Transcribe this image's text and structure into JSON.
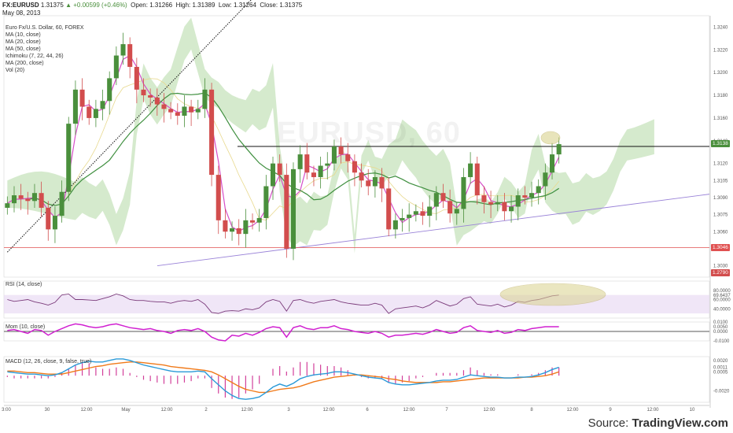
{
  "header": {
    "line1_symbol": "FX:EURUSD",
    "line1_price": "1.31375",
    "line1_change": "+0.00599 (+0.46%)",
    "open_label": "Open:",
    "open": "1.31266",
    "high_label": "High:",
    "high": "1.31389",
    "low_label": "Low:",
    "low": "1.31264",
    "close_label": "Close:",
    "close": "1.31375",
    "date": "May 08, 2013"
  },
  "indicators": [
    "Euro Fx/U.S. Dollar, 60, FOREX",
    "MA (10, close)",
    "MA (20, close)",
    "MA (50, close)",
    "Ichimoku (7, 22, 44, 26)",
    "MA (200, close)",
    "Vol (20)"
  ],
  "watermark": "EURUSD, 60",
  "source": {
    "prefix": "Source: ",
    "brand": "TradingView.com"
  },
  "colors": {
    "candle_up": "#4a8f3c",
    "candle_down": "#d24d4d",
    "ma10": "#d64fc8",
    "ma20": "#e8d98e",
    "ma50": "#3f8f3f",
    "ma200": "#222222",
    "cloud": "#c7e3bc",
    "trend": "#9a83d8",
    "resistance": "#111111",
    "support": "#e05050",
    "rsi_band": "#eadcf4",
    "rsi_line": "#7a3a7a",
    "mom_line": "#d020d0",
    "macd_line": "#2a9ad8",
    "signal_line": "#f07a1a",
    "hist": "#d23f9a"
  },
  "chart_data": {
    "type": "candlestick",
    "symbol": "FX:EURUSD",
    "timeframe": "60",
    "price_axis": {
      "ylim": [
        1.302,
        1.325
      ],
      "ticks": [
        "1.3240",
        "1.3220",
        "1.3200",
        "1.3180",
        "1.3160",
        "1.3140",
        "1.3120",
        "1.3105",
        "1.3090",
        "1.3075",
        "1.3060",
        "1.3046",
        "1.3030"
      ]
    },
    "price_labels": [
      {
        "text": "1.3138",
        "role": "last"
      },
      {
        "text": "1.3046",
        "role": "support"
      },
      {
        "text": "1.2790",
        "role": "ma200"
      }
    ],
    "time_axis": [
      "3:00",
      "30",
      "12:00",
      "May",
      "12:00",
      "2",
      "12:00",
      "3",
      "12:00",
      "6",
      "12:00",
      "7",
      "12:00",
      "8",
      "12:00",
      "9",
      "12:00",
      "10"
    ],
    "key_levels": {
      "resistance": 1.3135,
      "support": 1.3046
    },
    "trendline": {
      "from": 1.303,
      "to": 1.3093
    },
    "close_path": [
      1.3085,
      1.3092,
      1.3089,
      1.3087,
      1.3094,
      1.3081,
      1.3062,
      1.3074,
      1.3095,
      1.3155,
      1.3185,
      1.317,
      1.316,
      1.3168,
      1.3175,
      1.3195,
      1.3215,
      1.3225,
      1.3205,
      1.3185,
      1.318,
      1.3178,
      1.3172,
      1.3168,
      1.3165,
      1.3162,
      1.317,
      1.3165,
      1.3168,
      1.3185,
      1.311,
      1.307,
      1.306,
      1.3063,
      1.3058,
      1.307,
      1.3068,
      1.3072,
      1.31,
      1.312,
      1.311,
      1.3045,
      1.3115,
      1.3128,
      1.3112,
      1.3108,
      1.3118,
      1.312,
      1.3135,
      1.3128,
      1.3122,
      1.3112,
      1.3105,
      1.31,
      1.3108,
      1.3098,
      1.3062,
      1.307,
      1.3072,
      1.3075,
      1.3078,
      1.3074,
      1.3082,
      1.3094,
      1.3087,
      1.3076,
      1.308,
      1.3108,
      1.312,
      1.3092,
      1.3086,
      1.3084,
      1.3086,
      1.3078,
      1.3082,
      1.3092,
      1.309,
      1.3094,
      1.31,
      1.3112,
      1.3128,
      1.3137
    ],
    "rsi": {
      "label": "RSI (14, close)",
      "ticks": [
        "80.0000",
        "69.6437",
        "60.0000",
        "40.0000"
      ],
      "last": 69.6437,
      "values": [
        60,
        56,
        58,
        60,
        55,
        52,
        48,
        54,
        70,
        72,
        60,
        60,
        59,
        58,
        62,
        66,
        72,
        68,
        60,
        58,
        58,
        56,
        55,
        55,
        52,
        56,
        58,
        56,
        60,
        50,
        32,
        30,
        35,
        36,
        35,
        40,
        38,
        42,
        55,
        60,
        56,
        35,
        58,
        60,
        55,
        52,
        56,
        58,
        60,
        55,
        52,
        50,
        48,
        48,
        52,
        48,
        30,
        40,
        42,
        44,
        46,
        42,
        48,
        58,
        52,
        46,
        50,
        62,
        66,
        50,
        48,
        46,
        50,
        44,
        48,
        56,
        54,
        58,
        60,
        64,
        68,
        69.6
      ]
    },
    "momentum": {
      "label": "Mom (10, close)",
      "ticks": [
        "0.0100",
        "0.0050",
        "0.0000",
        "-0.0100"
      ],
      "last": 0.005,
      "values": [
        0.001,
        0.002,
        0.0,
        -0.002,
        0.002,
        0.001,
        -0.004,
        0.0,
        0.003,
        0.006,
        0.008,
        0.007,
        0.005,
        0.004,
        0.005,
        0.007,
        0.008,
        0.006,
        0.004,
        0.003,
        0.002,
        0.003,
        0.001,
        0.0,
        -0.002,
        0.001,
        0.002,
        0.001,
        0.003,
        0.0,
        -0.006,
        -0.009,
        -0.01,
        -0.004,
        -0.005,
        -0.002,
        -0.004,
        -0.001,
        0.003,
        0.005,
        0.004,
        -0.006,
        0.004,
        0.006,
        0.003,
        0.002,
        0.004,
        0.004,
        0.006,
        0.003,
        0.002,
        0.0,
        -0.001,
        -0.002,
        0.0,
        -0.002,
        -0.006,
        -0.004,
        -0.004,
        -0.003,
        -0.002,
        -0.003,
        -0.001,
        0.002,
        0.0,
        -0.002,
        -0.001,
        0.004,
        0.006,
        0.001,
        0.0,
        -0.001,
        0.001,
        -0.002,
        -0.001,
        0.002,
        0.001,
        0.003,
        0.004,
        0.005,
        0.005,
        0.005
      ]
    },
    "macd": {
      "label": "MACD (12, 26, close, 9, false, true)",
      "ticks": [
        "0.0020",
        "0.0011",
        "0.0005",
        "-0.0020"
      ],
      "macd_last": 0.0011,
      "signal_last": 0.0005,
      "macd": [
        0.0005,
        0.0004,
        0.0003,
        0.0002,
        0.0002,
        0.0001,
        0.0,
        0.0001,
        0.0004,
        0.0009,
        0.0014,
        0.0017,
        0.0019,
        0.0018,
        0.0018,
        0.002,
        0.0022,
        0.0022,
        0.002,
        0.0017,
        0.0014,
        0.0012,
        0.001,
        0.0008,
        0.0006,
        0.0005,
        0.0005,
        0.0005,
        0.0006,
        0.0005,
        -0.0004,
        -0.0012,
        -0.002,
        -0.0026,
        -0.003,
        -0.0031,
        -0.003,
        -0.0028,
        -0.0022,
        -0.0015,
        -0.0011,
        -0.0014,
        -0.001,
        -0.0004,
        -0.0001,
        0.0001,
        0.0002,
        0.0003,
        0.0005,
        0.0005,
        0.0004,
        0.0002,
        0.0,
        -0.0002,
        -0.0003,
        -0.0004,
        -0.0009,
        -0.0011,
        -0.0012,
        -0.0012,
        -0.0011,
        -0.001,
        -0.0009,
        -0.0007,
        -0.0006,
        -0.0006,
        -0.0005,
        -0.0002,
        0.0001,
        0.0,
        -0.0001,
        -0.0002,
        -0.0002,
        -0.0003,
        -0.0003,
        -0.0002,
        -0.0002,
        -0.0001,
        0.0001,
        0.0004,
        0.0008,
        0.0011
      ],
      "signal": [
        0.0006,
        0.0006,
        0.0005,
        0.0004,
        0.0004,
        0.0003,
        0.0002,
        0.0002,
        0.0002,
        0.0004,
        0.0006,
        0.0008,
        0.001,
        0.0012,
        0.0013,
        0.0015,
        0.0016,
        0.0017,
        0.0018,
        0.0018,
        0.0017,
        0.0016,
        0.0015,
        0.0014,
        0.0012,
        0.0011,
        0.001,
        0.0009,
        0.0008,
        0.0007,
        0.0005,
        0.0001,
        -0.0004,
        -0.0009,
        -0.0014,
        -0.0018,
        -0.002,
        -0.0022,
        -0.0022,
        -0.002,
        -0.0018,
        -0.0017,
        -0.0016,
        -0.0014,
        -0.0011,
        -0.0008,
        -0.0006,
        -0.0004,
        -0.0002,
        -0.0001,
        0.0,
        0.0001,
        0.0001,
        0.0,
        -0.0001,
        -0.0002,
        -0.0004,
        -0.0005,
        -0.0007,
        -0.0008,
        -0.0009,
        -0.0009,
        -0.0009,
        -0.0009,
        -0.0008,
        -0.0008,
        -0.0007,
        -0.0006,
        -0.0005,
        -0.0004,
        -0.0003,
        -0.0003,
        -0.0003,
        -0.0003,
        -0.0003,
        -0.0003,
        -0.0002,
        -0.0002,
        -0.0001,
        0.0,
        0.0002,
        0.0005
      ]
    }
  }
}
